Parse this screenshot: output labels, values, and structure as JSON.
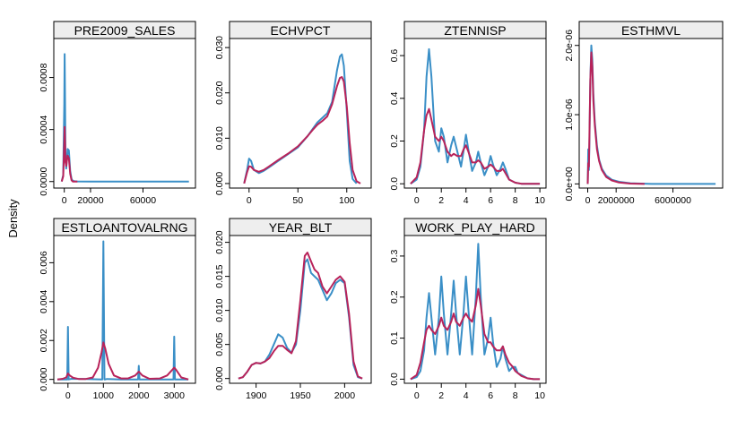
{
  "figure": {
    "ylabel": "Density",
    "colors": {
      "blue": "#3a8fc7",
      "red": "#b8235a",
      "strip_bg": "#eeeeee"
    }
  },
  "chart_data": [
    {
      "type": "line",
      "title": "PRE2009_SALES",
      "xlim": [
        -8000,
        100000
      ],
      "ylim": [
        -5e-05,
        0.0011
      ],
      "xticks": [
        0,
        20000,
        60000
      ],
      "xtick_labels": [
        "0",
        "20000",
        "60000"
      ],
      "yticks": [
        0,
        0.0004,
        0.0008
      ],
      "ytick_labels": [
        "0.0000",
        "0.0004",
        "0.0008"
      ],
      "series": [
        {
          "color": "blue",
          "x": [
            -2000,
            -800,
            0,
            300,
            600,
            900,
            1500,
            2500,
            3500,
            4500,
            5500,
            6500,
            8000,
            10000,
            20000,
            40000,
            60000,
            80000,
            95000
          ],
          "y": [
            0,
            5e-05,
            0.0006,
            0.00098,
            0.0006,
            0.0002,
            0.0001,
            0.00025,
            0.00024,
            8e-05,
            2e-05,
            5e-06,
            2e-06,
            1e-06,
            0,
            0,
            0,
            0,
            0
          ]
        },
        {
          "color": "red",
          "x": [
            -2000,
            -800,
            0,
            300,
            600,
            900,
            1500,
            2500,
            3500,
            4500,
            5500,
            6500,
            8000,
            10000
          ],
          "y": [
            0,
            4e-05,
            0.0003,
            0.00042,
            0.0003,
            0.00015,
            0.00012,
            0.0002,
            0.00018,
            6e-05,
            1e-05,
            0,
            0,
            0
          ]
        }
      ]
    },
    {
      "type": "line",
      "title": "ECHVPCT",
      "xlim": [
        -20,
        125
      ],
      "ylim": [
        -0.001,
        0.032
      ],
      "xticks": [
        0,
        50,
        100
      ],
      "xtick_labels": [
        "0",
        "50",
        "100"
      ],
      "yticks": [
        0,
        0.01,
        0.02,
        0.03
      ],
      "ytick_labels": [
        "0.000",
        "0.010",
        "0.020",
        "0.030"
      ],
      "series": [
        {
          "color": "blue",
          "x": [
            -5,
            -2,
            0,
            2,
            5,
            10,
            15,
            20,
            30,
            40,
            50,
            60,
            65,
            70,
            75,
            80,
            85,
            90,
            93,
            95,
            97,
            100,
            103,
            106,
            110
          ],
          "y": [
            0,
            0.003,
            0.0055,
            0.005,
            0.003,
            0.0023,
            0.0028,
            0.0035,
            0.005,
            0.0065,
            0.008,
            0.0105,
            0.012,
            0.0135,
            0.0145,
            0.0155,
            0.018,
            0.025,
            0.028,
            0.0285,
            0.026,
            0.016,
            0.005,
            0.001,
            0
          ]
        },
        {
          "color": "red",
          "x": [
            -5,
            -2,
            0,
            2,
            5,
            10,
            15,
            20,
            30,
            40,
            50,
            60,
            65,
            70,
            75,
            80,
            85,
            90,
            93,
            95,
            97,
            100,
            103,
            106,
            110,
            114
          ],
          "y": [
            0,
            0.0025,
            0.0038,
            0.0037,
            0.003,
            0.0026,
            0.003,
            0.0037,
            0.0052,
            0.0066,
            0.0082,
            0.0105,
            0.0118,
            0.013,
            0.0138,
            0.0148,
            0.0175,
            0.0215,
            0.0233,
            0.0235,
            0.0225,
            0.017,
            0.009,
            0.003,
            0.0005,
            0
          ]
        }
      ]
    },
    {
      "type": "line",
      "title": "ZTENNISP",
      "xlim": [
        -1,
        10.5
      ],
      "ylim": [
        -0.02,
        0.68
      ],
      "xticks": [
        0,
        2,
        4,
        6,
        8,
        10
      ],
      "xtick_labels": [
        "0",
        "2",
        "4",
        "6",
        "8",
        "10"
      ],
      "yticks": [
        0,
        0.2,
        0.4,
        0.6
      ],
      "ytick_labels": [
        "0.0",
        "0.2",
        "0.4",
        "0.6"
      ],
      "series": [
        {
          "color": "blue",
          "x": [
            -0.5,
            0,
            0.3,
            0.6,
            0.8,
            1.0,
            1.2,
            1.5,
            1.8,
            2.0,
            2.2,
            2.5,
            2.8,
            3.0,
            3.3,
            3.6,
            3.8,
            4.0,
            4.2,
            4.5,
            4.8,
            5.0,
            5.2,
            5.5,
            5.8,
            6.0,
            6.2,
            6.5,
            6.8,
            7.0,
            7.2,
            7.5,
            8.0,
            8.5,
            9.0,
            10.0
          ],
          "y": [
            0,
            0.02,
            0.08,
            0.25,
            0.5,
            0.63,
            0.5,
            0.2,
            0.15,
            0.26,
            0.22,
            0.1,
            0.18,
            0.22,
            0.15,
            0.08,
            0.15,
            0.23,
            0.16,
            0.06,
            0.1,
            0.15,
            0.1,
            0.04,
            0.08,
            0.13,
            0.09,
            0.04,
            0.07,
            0.1,
            0.07,
            0.02,
            0.005,
            0,
            0,
            0
          ]
        },
        {
          "color": "red",
          "x": [
            -0.5,
            0,
            0.3,
            0.6,
            0.8,
            1.0,
            1.2,
            1.5,
            1.8,
            2.0,
            2.2,
            2.5,
            2.8,
            3.0,
            3.3,
            3.6,
            3.8,
            4.0,
            4.2,
            4.5,
            4.8,
            5.0,
            5.2,
            5.5,
            5.8,
            6.0,
            6.2,
            6.5,
            6.8,
            7.0,
            7.2,
            7.5,
            8.0,
            8.5,
            9.0,
            10.0
          ],
          "y": [
            0,
            0.03,
            0.1,
            0.25,
            0.32,
            0.35,
            0.3,
            0.22,
            0.2,
            0.22,
            0.2,
            0.15,
            0.13,
            0.14,
            0.13,
            0.13,
            0.16,
            0.18,
            0.15,
            0.1,
            0.1,
            0.11,
            0.1,
            0.07,
            0.08,
            0.09,
            0.08,
            0.06,
            0.06,
            0.07,
            0.05,
            0.02,
            0.005,
            0,
            0,
            0
          ]
        }
      ]
    },
    {
      "type": "line",
      "title": "ESTHMVL",
      "xlim": [
        -600000,
        9500000
      ],
      "ylim": [
        -6e-08,
        2.1e-06
      ],
      "xticks": [
        0,
        2000000,
        6000000
      ],
      "xtick_labels": [
        "0",
        "2000000",
        "6000000"
      ],
      "yticks": [
        0,
        1e-06,
        2e-06
      ],
      "ytick_labels": [
        "0.0e+00",
        "1.0e-06",
        "2.0e-06"
      ],
      "series": [
        {
          "color": "blue",
          "x": [
            0,
            40000,
            80000,
            120000,
            180000,
            250000,
            320000,
            400000,
            500000,
            650000,
            800000,
            1000000,
            1300000,
            1700000,
            2200000,
            3000000,
            4500000,
            6000000,
            8000000,
            9000000
          ],
          "y": [
            0,
            5e-07,
            2e-07,
            6e-07,
            1.5e-06,
            2e-06,
            1.8e-06,
            1.3e-06,
            9e-07,
            5.5e-07,
            3.5e-07,
            2.2e-07,
            1.2e-07,
            6e-08,
            3e-08,
            1e-08,
            0,
            0,
            0,
            0
          ]
        },
        {
          "color": "red",
          "x": [
            0,
            40000,
            80000,
            120000,
            180000,
            250000,
            320000,
            400000,
            500000,
            650000,
            800000,
            1000000,
            1300000,
            1700000,
            2200000,
            3000000,
            4000000
          ],
          "y": [
            0,
            3e-07,
            2.5e-07,
            7e-07,
            1.5e-06,
            1.9e-06,
            1.7e-06,
            1.2e-06,
            8.5e-07,
            5e-07,
            3.3e-07,
            2e-07,
            1e-07,
            5e-08,
            2e-08,
            5e-09,
            0
          ]
        }
      ]
    },
    {
      "type": "line",
      "title": "ESTLOANTOVALRNG",
      "xlim": [
        -400,
        3600
      ],
      "ylim": [
        -0.0002,
        0.0074
      ],
      "xticks": [
        0,
        1000,
        2000,
        3000
      ],
      "xtick_labels": [
        "0",
        "1000",
        "2000",
        "3000"
      ],
      "yticks": [
        0,
        0.002,
        0.004,
        0.006
      ],
      "ytick_labels": [
        "0.000",
        "0.002",
        "0.004",
        "0.006"
      ],
      "series": [
        {
          "color": "blue",
          "x": [
            -300,
            -20,
            0,
            20,
            100,
            500,
            970,
            1000,
            1030,
            1050,
            1100,
            1500,
            1980,
            2000,
            2020,
            2500,
            2980,
            3000,
            3020,
            3100,
            3400
          ],
          "y": [
            0,
            0,
            0.0027,
            0,
            3e-05,
            2e-05,
            0,
            0.0071,
            0,
            0,
            2e-05,
            0,
            0,
            0.0007,
            0,
            0,
            0,
            0.0022,
            0,
            0,
            0
          ]
        },
        {
          "color": "red",
          "x": [
            -300,
            -150,
            -50,
            0,
            50,
            150,
            300,
            500,
            700,
            850,
            950,
            1000,
            1050,
            1150,
            1300,
            1500,
            1700,
            1900,
            2000,
            2100,
            2300,
            2600,
            2800,
            2950,
            3000,
            3050,
            3200,
            3400
          ],
          "y": [
            0,
            3e-05,
            0.0001,
            0.0003,
            0.0002,
            8e-05,
            2e-05,
            2e-05,
            0.0001,
            0.0006,
            0.0014,
            0.0019,
            0.0016,
            0.0008,
            0.0002,
            5e-05,
            5e-05,
            0.0002,
            0.0004,
            0.0002,
            3e-05,
            5e-05,
            0.0002,
            0.0005,
            0.0006,
            0.0005,
            0.0001,
            0
          ]
        }
      ]
    },
    {
      "type": "line",
      "title": "YEAR_BLT",
      "xlim": [
        1870,
        2030
      ],
      "ylim": [
        -0.0007,
        0.021
      ],
      "xticks": [
        1900,
        1950,
        2000
      ],
      "xtick_labels": [
        "1900",
        "1950",
        "2000"
      ],
      "yticks": [
        0,
        0.005,
        0.01,
        0.015,
        0.02
      ],
      "ytick_labels": [
        "0.000",
        "0.005",
        "0.010",
        "0.015",
        "0.020"
      ],
      "series": [
        {
          "color": "blue",
          "x": [
            1880,
            1885,
            1890,
            1895,
            1900,
            1905,
            1910,
            1915,
            1920,
            1925,
            1930,
            1935,
            1940,
            1945,
            1950,
            1955,
            1958,
            1962,
            1966,
            1970,
            1975,
            1980,
            1985,
            1990,
            1995,
            2000,
            2005,
            2010,
            2015,
            2020
          ],
          "y": [
            0,
            0.0002,
            0.001,
            0.002,
            0.0023,
            0.0022,
            0.0025,
            0.0035,
            0.005,
            0.0065,
            0.006,
            0.0045,
            0.0038,
            0.005,
            0.01,
            0.017,
            0.0175,
            0.0155,
            0.015,
            0.0145,
            0.013,
            0.0115,
            0.0125,
            0.014,
            0.0145,
            0.014,
            0.009,
            0.002,
            0.0002,
            0
          ]
        },
        {
          "color": "red",
          "x": [
            1880,
            1885,
            1890,
            1895,
            1900,
            1905,
            1910,
            1915,
            1920,
            1925,
            1930,
            1935,
            1940,
            1945,
            1950,
            1955,
            1958,
            1962,
            1966,
            1970,
            1975,
            1980,
            1985,
            1990,
            1995,
            2000,
            2005,
            2010,
            2015,
            2020
          ],
          "y": [
            0,
            0.0002,
            0.001,
            0.002,
            0.0023,
            0.0022,
            0.0025,
            0.003,
            0.004,
            0.0048,
            0.0048,
            0.0042,
            0.0037,
            0.0055,
            0.0115,
            0.018,
            0.0185,
            0.0172,
            0.016,
            0.0155,
            0.0135,
            0.0125,
            0.0135,
            0.0145,
            0.015,
            0.0142,
            0.0095,
            0.0025,
            0.0003,
            0
          ]
        }
      ]
    },
    {
      "type": "line",
      "title": "WORK_PLAY_HARD",
      "xlim": [
        -1,
        10.5
      ],
      "ylim": [
        -0.01,
        0.35
      ],
      "xticks": [
        0,
        2,
        4,
        6,
        8,
        10
      ],
      "xtick_labels": [
        "0",
        "2",
        "4",
        "6",
        "8",
        "10"
      ],
      "yticks": [
        0,
        0.1,
        0.2,
        0.3
      ],
      "ytick_labels": [
        "0.0",
        "0.1",
        "0.2",
        "0.3"
      ],
      "series": [
        {
          "color": "blue",
          "x": [
            -0.5,
            0,
            0.3,
            0.6,
            0.8,
            1.0,
            1.2,
            1.5,
            1.8,
            2.0,
            2.2,
            2.5,
            2.8,
            3.0,
            3.2,
            3.5,
            3.8,
            4.0,
            4.2,
            4.5,
            4.8,
            5.0,
            5.2,
            5.5,
            5.8,
            6.0,
            6.2,
            6.5,
            6.8,
            7.0,
            7.2,
            7.5,
            7.8,
            8.0,
            8.2,
            8.5,
            9.0,
            9.5,
            10.0
          ],
          "y": [
            0,
            0.005,
            0.02,
            0.07,
            0.15,
            0.21,
            0.15,
            0.06,
            0.15,
            0.25,
            0.16,
            0.06,
            0.16,
            0.24,
            0.16,
            0.06,
            0.16,
            0.25,
            0.17,
            0.06,
            0.2,
            0.33,
            0.2,
            0.06,
            0.1,
            0.15,
            0.09,
            0.03,
            0.05,
            0.08,
            0.05,
            0.02,
            0.03,
            0.03,
            0.015,
            0.01,
            0.002,
            0,
            0
          ]
        },
        {
          "color": "red",
          "x": [
            -0.5,
            0,
            0.3,
            0.6,
            0.8,
            1.0,
            1.2,
            1.5,
            1.8,
            2.0,
            2.2,
            2.5,
            2.8,
            3.0,
            3.2,
            3.5,
            3.8,
            4.0,
            4.2,
            4.5,
            4.8,
            5.0,
            5.2,
            5.5,
            5.8,
            6.0,
            6.2,
            6.5,
            6.8,
            7.0,
            7.2,
            7.5,
            7.8,
            8.0,
            8.2,
            8.5,
            9.0,
            9.5,
            10.0
          ],
          "y": [
            0,
            0.01,
            0.04,
            0.09,
            0.12,
            0.13,
            0.12,
            0.11,
            0.13,
            0.15,
            0.13,
            0.12,
            0.14,
            0.16,
            0.14,
            0.13,
            0.15,
            0.16,
            0.15,
            0.14,
            0.18,
            0.22,
            0.18,
            0.11,
            0.09,
            0.09,
            0.08,
            0.07,
            0.07,
            0.08,
            0.06,
            0.04,
            0.03,
            0.02,
            0.015,
            0.008,
            0.002,
            0,
            0
          ]
        }
      ]
    }
  ]
}
